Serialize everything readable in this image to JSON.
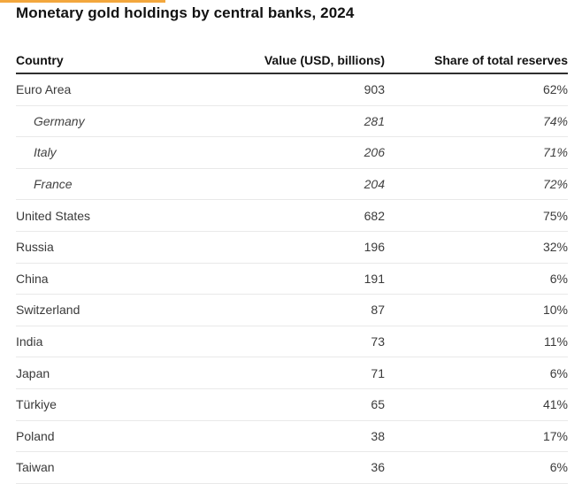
{
  "page": {
    "title": "Monetary gold holdings by central banks, 2024",
    "accent_color": "#f3a73d"
  },
  "table": {
    "columns": {
      "country": "Country",
      "value": "Value (USD, billions)",
      "share": "Share of total reserves"
    },
    "rows": [
      {
        "country": "Euro Area",
        "value": "903",
        "share": "62%",
        "sub": false
      },
      {
        "country": "Germany",
        "value": "281",
        "share": "74%",
        "sub": true
      },
      {
        "country": "Italy",
        "value": "206",
        "share": "71%",
        "sub": true
      },
      {
        "country": "France",
        "value": "204",
        "share": "72%",
        "sub": true
      },
      {
        "country": "United States",
        "value": "682",
        "share": "75%",
        "sub": false
      },
      {
        "country": "Russia",
        "value": "196",
        "share": "32%",
        "sub": false
      },
      {
        "country": "China",
        "value": "191",
        "share": "6%",
        "sub": false
      },
      {
        "country": "Switzerland",
        "value": "87",
        "share": "10%",
        "sub": false
      },
      {
        "country": "India",
        "value": "73",
        "share": "11%",
        "sub": false
      },
      {
        "country": "Japan",
        "value": "71",
        "share": "6%",
        "sub": false
      },
      {
        "country": "Türkiye",
        "value": "65",
        "share": "41%",
        "sub": false
      },
      {
        "country": "Poland",
        "value": "38",
        "share": "17%",
        "sub": false
      },
      {
        "country": "Taiwan",
        "value": "36",
        "share": "6%",
        "sub": false
      }
    ]
  }
}
